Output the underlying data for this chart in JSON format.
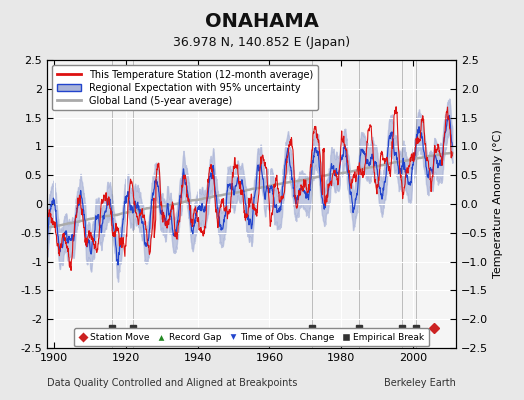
{
  "title": "ONAHAMA",
  "subtitle": "36.978 N, 140.852 E (Japan)",
  "ylabel": "Temperature Anomaly (°C)",
  "xlabel_left": "Data Quality Controlled and Aligned at Breakpoints",
  "xlabel_right": "Berkeley Earth",
  "xlim": [
    1898,
    2012
  ],
  "ylim": [
    -2.5,
    2.5
  ],
  "yticks": [
    -2.5,
    -2,
    -1.5,
    -1,
    -0.5,
    0,
    0.5,
    1,
    1.5,
    2,
    2.5
  ],
  "xticks": [
    1900,
    1920,
    1940,
    1960,
    1980,
    2000
  ],
  "bg_color": "#e8e8e8",
  "plot_bg_color": "#f5f5f5",
  "grid_color": "#ffffff",
  "empirical_breaks": [
    1916,
    1922,
    1972,
    1985,
    1997,
    2001
  ],
  "station_moves": [
    2006
  ],
  "seed": 42
}
